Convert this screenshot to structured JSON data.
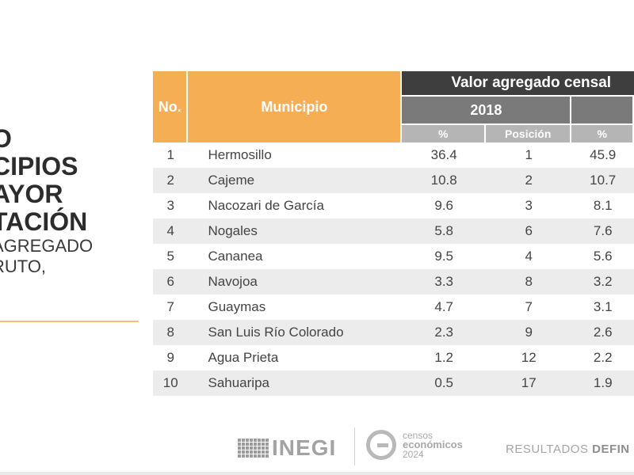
{
  "left": {
    "title_lines": [
      "O",
      "CIPIOS",
      "AYOR",
      "TACIÓN"
    ],
    "sub_lines": [
      "AGREGADO",
      "RUTO,"
    ]
  },
  "table": {
    "header_no": "No.",
    "header_municipio": "Municipio",
    "header_group": "Valor agregado censal",
    "year_2018": "2018",
    "col_pct": "%",
    "col_pos": "Posición",
    "col_pct2": "%",
    "rows": [
      {
        "no": "1",
        "mun": "Hermosillo",
        "pct": "36.4",
        "pos": "1",
        "pct2": "45.9"
      },
      {
        "no": "2",
        "mun": "Cajeme",
        "pct": "10.8",
        "pos": "2",
        "pct2": "10.7"
      },
      {
        "no": "3",
        "mun": "Nacozari de García",
        "pct": "9.6",
        "pos": "3",
        "pct2": "8.1"
      },
      {
        "no": "4",
        "mun": "Nogales",
        "pct": "5.8",
        "pos": "6",
        "pct2": "7.6"
      },
      {
        "no": "5",
        "mun": "Cananea",
        "pct": "9.5",
        "pos": "4",
        "pct2": "5.6"
      },
      {
        "no": "6",
        "mun": "Navojoa",
        "pct": "3.3",
        "pos": "8",
        "pct2": "3.2"
      },
      {
        "no": "7",
        "mun": "Guaymas",
        "pct": "4.7",
        "pos": "7",
        "pct2": "3.1"
      },
      {
        "no": "8",
        "mun": "San Luis Río Colorado",
        "pct": "2.3",
        "pos": "9",
        "pct2": "2.6"
      },
      {
        "no": "9",
        "mun": "Agua Prieta",
        "pct": "1.2",
        "pos": "12",
        "pct2": "2.2"
      },
      {
        "no": "10",
        "mun": "Sahuaripa",
        "pct": "0.5",
        "pos": "17",
        "pct2": "1.9"
      }
    ]
  },
  "footer": {
    "inegi": "INEGI",
    "censos_l1": "censos",
    "censos_l2": "económicos",
    "censos_l3": "2024",
    "resultados": "RESULTADOS",
    "resultados_bold": "DEFIN"
  },
  "colors": {
    "accent": "#f6ae55",
    "dark_header": "#3e3e3e",
    "mid_header": "#7a7a7a"
  }
}
